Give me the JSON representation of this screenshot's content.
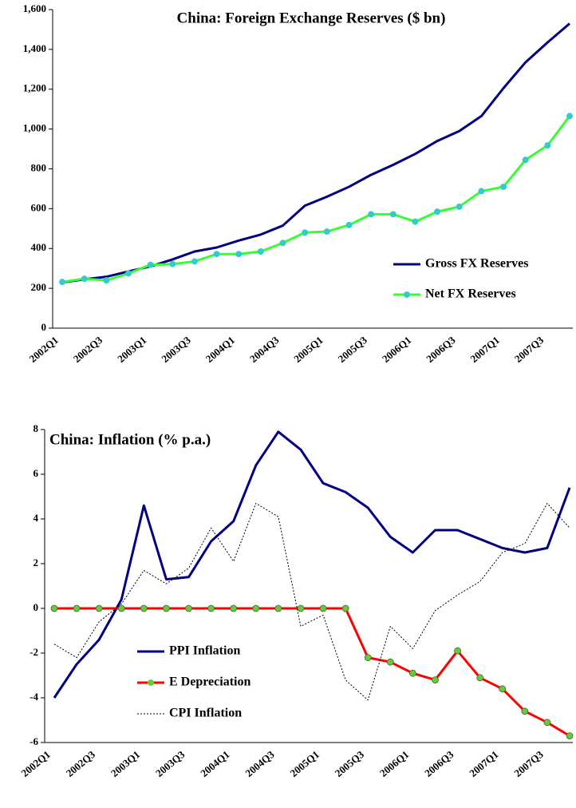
{
  "chart_data": [
    {
      "type": "line",
      "title": "China: Foreign Exchange Reserves ($ bn)",
      "categories": [
        "2002Q1",
        null,
        "2002Q3",
        null,
        "2003Q1",
        null,
        "2003Q3",
        null,
        "2004Q1",
        null,
        "2004Q3",
        null,
        "2005Q1",
        null,
        "2005Q3",
        null,
        "2006Q1",
        null,
        "2006Q3",
        null,
        "2007Q1",
        null,
        "2007Q3",
        null
      ],
      "series": [
        {
          "name": "Gross FX Reserves",
          "color": "#000080",
          "marker": false,
          "values": [
            230,
            245,
            258,
            285,
            310,
            345,
            385,
            405,
            440,
            470,
            515,
            615,
            660,
            710,
            770,
            820,
            875,
            940,
            990,
            1065,
            1205,
            1335,
            1435,
            1530
          ]
        },
        {
          "name": "Net FX Reserves",
          "color": "#33ff33",
          "marker": true,
          "marker_color": "#33cccc",
          "values": [
            232,
            248,
            240,
            275,
            318,
            322,
            335,
            372,
            372,
            385,
            428,
            480,
            485,
            518,
            572,
            572,
            535,
            585,
            610,
            688,
            710,
            845,
            918,
            1065
          ]
        }
      ],
      "ylim": [
        0,
        1600
      ],
      "yticks": [
        0,
        200,
        400,
        600,
        800,
        {
          "value": 1000,
          "label": "1,000"
        },
        {
          "value": 1200,
          "label": "1,200"
        },
        {
          "value": 1400,
          "label": "1,400"
        },
        {
          "value": 1600,
          "label": "1,600"
        }
      ],
      "grid": false,
      "legend": "lower right"
    },
    {
      "type": "line",
      "title": "China: Inflation (% p.a.)",
      "categories": [
        "2002Q1",
        null,
        "2002Q3",
        null,
        "2003Q1",
        null,
        "2003Q3",
        null,
        "2004Q1",
        null,
        "2004Q3",
        null,
        "2005Q1",
        null,
        "2005Q3",
        null,
        "2006Q1",
        null,
        "2006Q3",
        null,
        "2007Q1",
        null,
        "2007Q3",
        null
      ],
      "series": [
        {
          "name": "PPI Inflation",
          "color": "#000080",
          "marker": false,
          "values": [
            -4.0,
            -2.5,
            -1.4,
            0.4,
            4.6,
            1.3,
            1.4,
            3.0,
            3.9,
            6.4,
            7.9,
            7.1,
            5.6,
            5.2,
            4.5,
            3.2,
            2.5,
            3.5,
            3.5,
            3.1,
            2.7,
            2.5,
            2.7,
            5.4
          ]
        },
        {
          "name": "E Depreciation",
          "color": "#ff0000",
          "marker": true,
          "marker_color": "#66cc33",
          "values": [
            0,
            0,
            0,
            0,
            0,
            0,
            0,
            0,
            0,
            0,
            0,
            0,
            0,
            0,
            -2.2,
            -2.4,
            -2.9,
            -3.2,
            -1.9,
            -3.1,
            -3.6,
            -4.6,
            -5.1,
            -5.7
          ]
        },
        {
          "name": "CPI Inflation",
          "color": "#000000",
          "marker": false,
          "dash": "dotted",
          "values": [
            -1.6,
            -2.2,
            -0.6,
            0.2,
            1.7,
            1.1,
            1.8,
            3.6,
            2.1,
            4.7,
            4.1,
            -0.8,
            -0.3,
            -3.2,
            -4.1,
            -0.8,
            -1.8,
            -0.1,
            0.6,
            1.2,
            2.5,
            2.9,
            4.7,
            3.6
          ]
        }
      ],
      "ylim": [
        -6,
        8
      ],
      "yticks": [
        -6,
        -4,
        -2,
        0,
        2,
        4,
        6,
        8
      ],
      "grid": false,
      "legend": "center left"
    }
  ]
}
